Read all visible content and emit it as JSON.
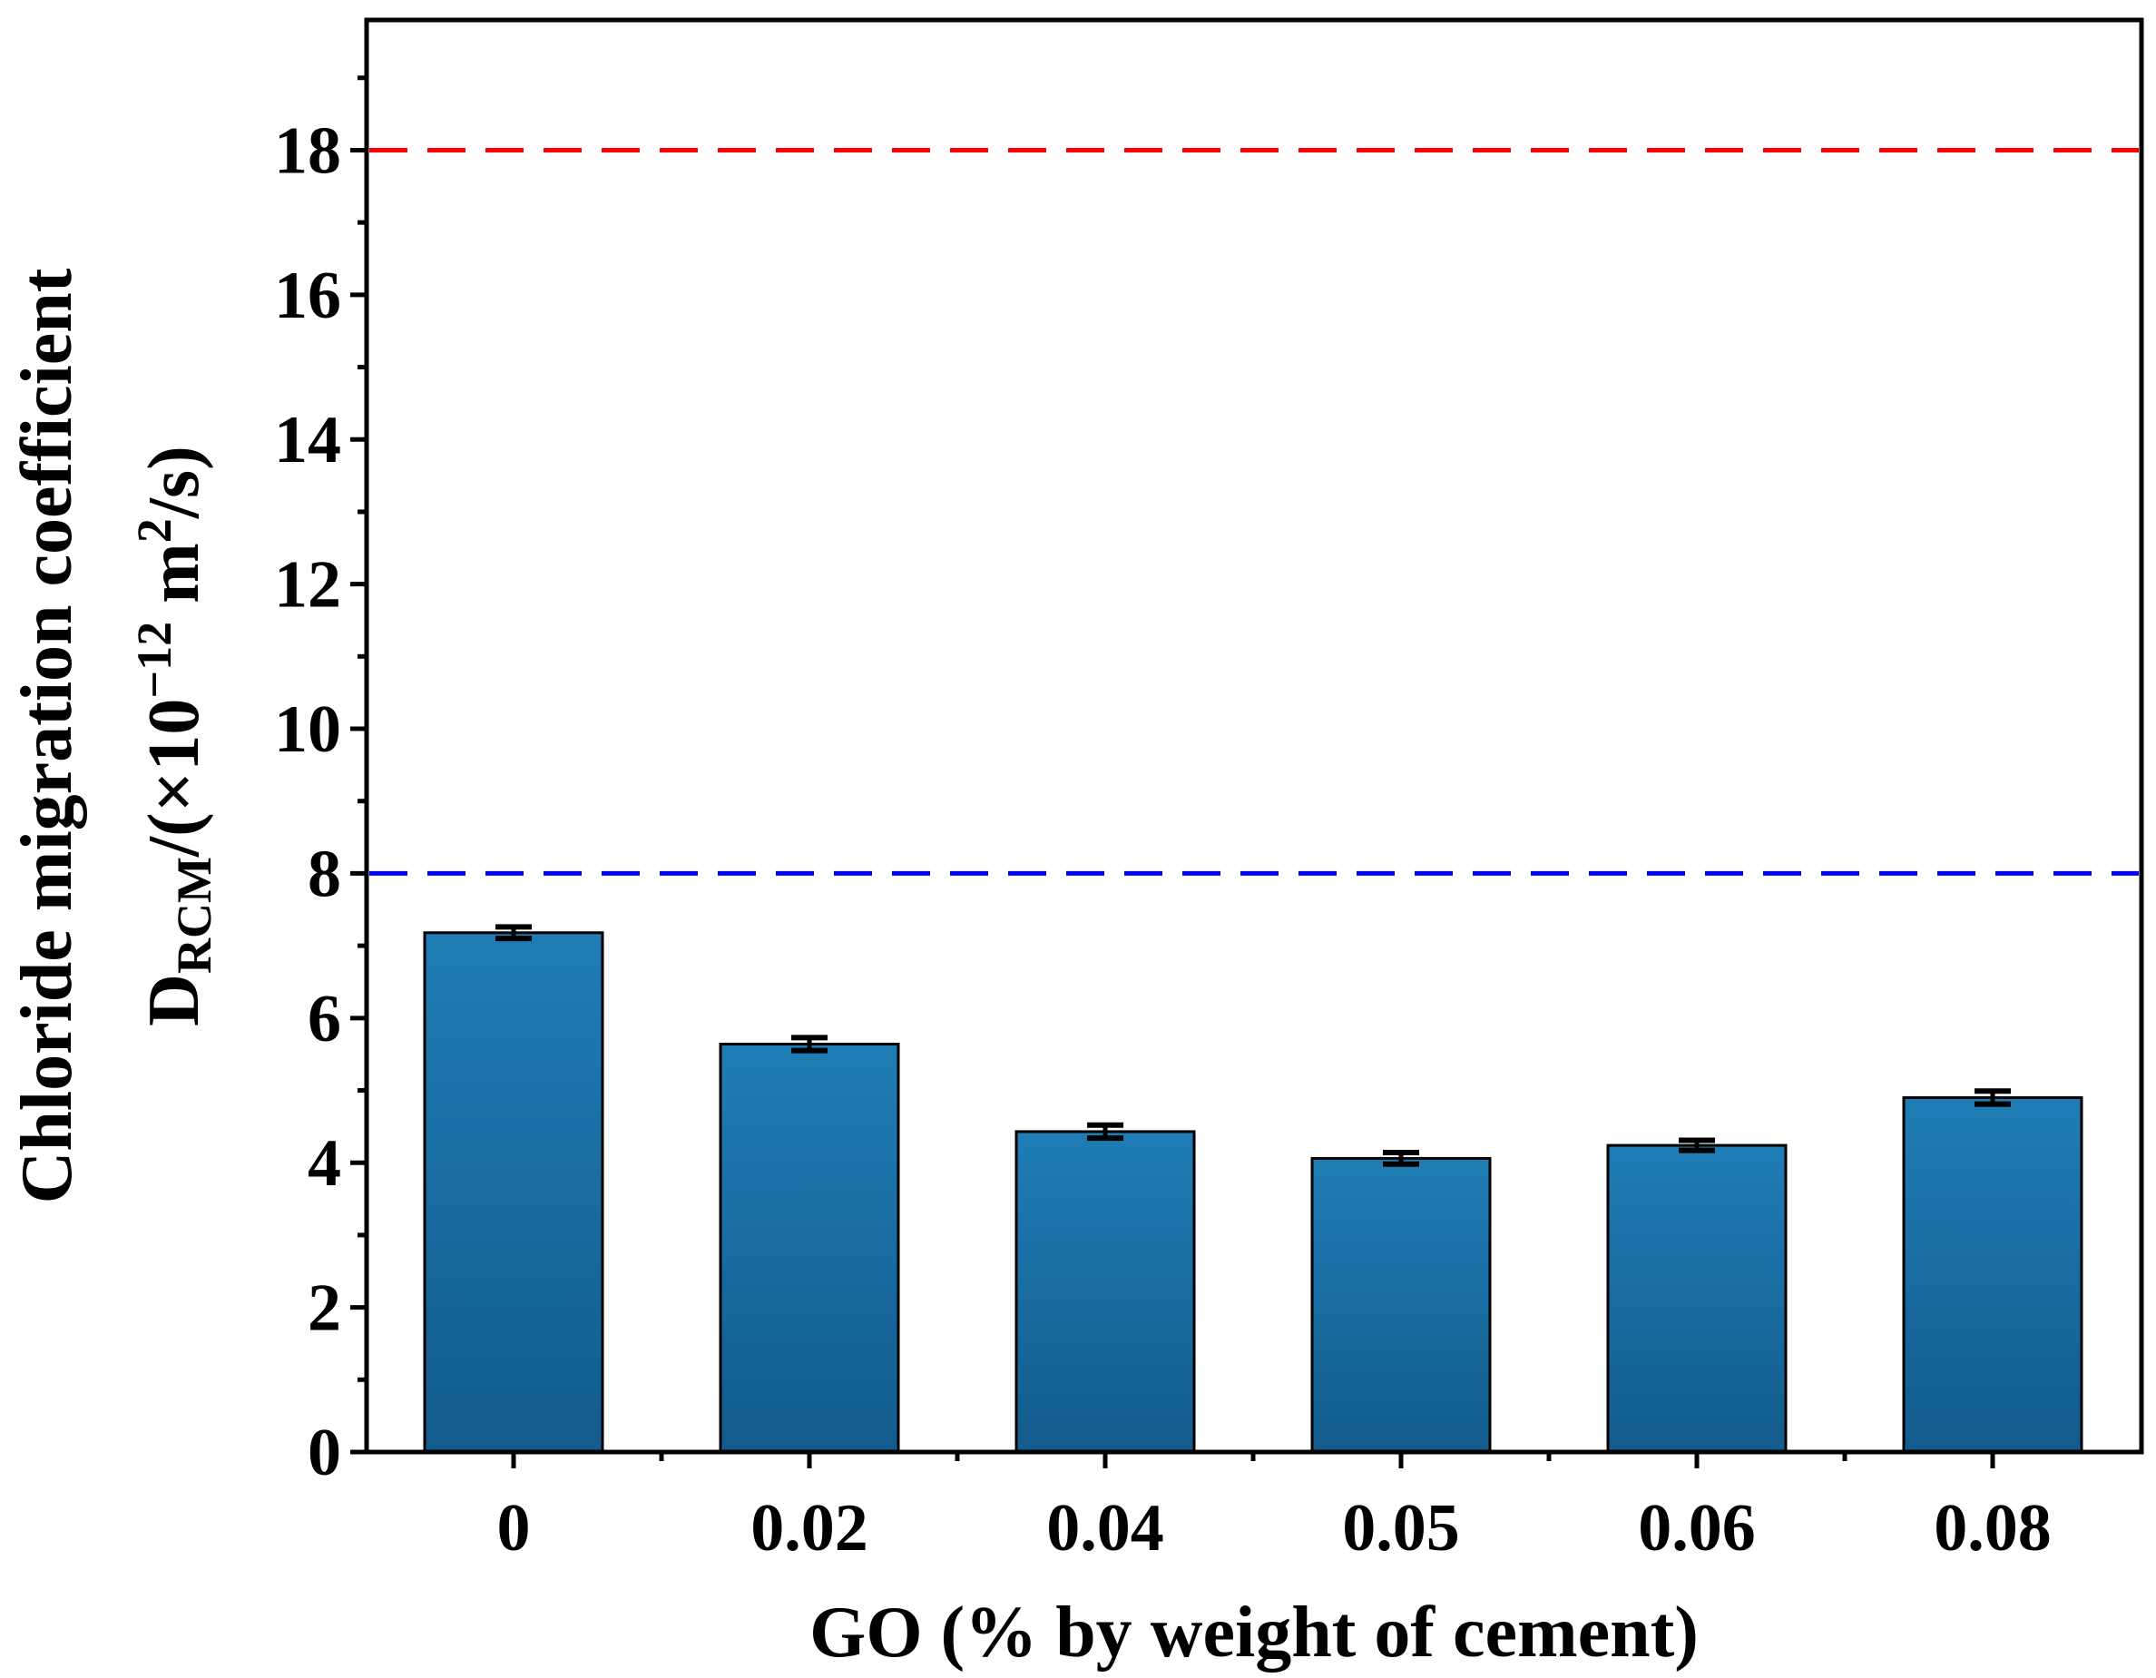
{
  "chart_data": {
    "type": "bar",
    "title": "",
    "xlabel": "GO (% by weight of cement)",
    "ylabel_line1": "Chloride migration coefficient",
    "ylabel_line2": {
      "main": "D",
      "subscript": "RCM",
      "prefix": "/(×10",
      "exponent1": "−12",
      "middle": " m",
      "exponent2": "2",
      "suffix": "/s)"
    },
    "categories": [
      "0",
      "0.02",
      "0.04",
      "0.05",
      "0.06",
      "0.08"
    ],
    "series": [
      {
        "name": "Chloride migration coefficient",
        "values": [
          7.18,
          5.64,
          4.43,
          4.06,
          4.24,
          4.9
        ],
        "errors": [
          0.08,
          0.09,
          0.09,
          0.08,
          0.07,
          0.09
        ],
        "color": "#1b6fa3"
      }
    ],
    "reference_lines": [
      {
        "value": 18,
        "color": "#ff0000",
        "style": "dashed"
      },
      {
        "value": 8,
        "color": "#0000ff",
        "style": "dashed"
      }
    ],
    "ylim": [
      0,
      19.8
    ],
    "yticks": [
      0,
      2,
      4,
      6,
      8,
      10,
      12,
      14,
      16,
      18
    ],
    "grid": false,
    "legend": "none"
  }
}
